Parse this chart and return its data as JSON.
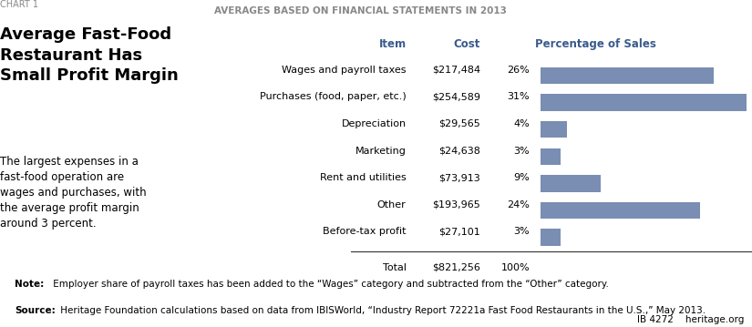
{
  "chart_label": "CHART 1",
  "title": "Average Fast-Food\nRestaurant Has\nSmall Profit Margin",
  "subtitle": "AVERAGES BASED ON FINANCIAL STATEMENTS IN 2013",
  "description": "The largest expenses in a\nfast-food operation are\nwages and purchases, with\nthe average profit margin\naround 3 percent.",
  "col_header_item": "Item",
  "col_header_cost": "Cost",
  "col_header_pct": "Percentage of Sales",
  "items": [
    "Wages and payroll taxes",
    "Purchases (food, paper, etc.)",
    "Depreciation",
    "Marketing",
    "Rent and utilities",
    "Other",
    "Before-tax profit"
  ],
  "costs": [
    "$217,484",
    "$254,589",
    "$29,565",
    "$24,638",
    "$73,913",
    "$193,965",
    "$27,101"
  ],
  "percentages": [
    "26%",
    "31%",
    "4%",
    "3%",
    "9%",
    "24%",
    "3%"
  ],
  "pct_values": [
    26,
    31,
    4,
    3,
    9,
    24,
    3
  ],
  "total_label": "Total",
  "total_cost": "$821,256",
  "total_pct": "100%",
  "bar_color": "#7a8db3",
  "header_color": "#3a5a8c",
  "note_text": "Note: Employer share of payroll taxes has been added to the “Wages” category and subtracted from the “Other” category.",
  "source_text": "Source: Heritage Foundation calculations based on data from IBISWorld, “Industry Report 72221a Fast Food Restaurants in the U.S.,” May 2013.",
  "footer_right": "IB 4272    heritage.org",
  "bg_color": "#ffffff",
  "text_color": "#000000",
  "chart_label_color": "#888888"
}
